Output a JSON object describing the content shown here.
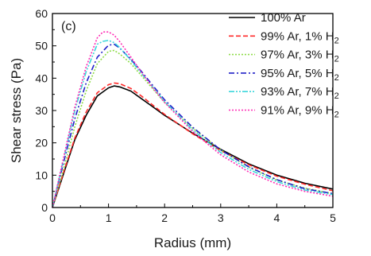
{
  "chart_data": {
    "type": "line",
    "panel_label": "(c)",
    "xlabel": "Radius (mm)",
    "ylabel": "Shear stress (Pa)",
    "xlim": [
      0,
      5
    ],
    "ylim": [
      0,
      60
    ],
    "xticks": [
      "0",
      "1",
      "2",
      "3",
      "4",
      "5"
    ],
    "yticks": [
      "0",
      "10",
      "20",
      "30",
      "40",
      "50",
      "60"
    ],
    "grid": false,
    "legend_position": "top-right",
    "series": [
      {
        "name": "100% Ar",
        "color": "#000000",
        "dash": "solid",
        "x": [
          0,
          0.2,
          0.4,
          0.6,
          0.8,
          1.0,
          1.1,
          1.2,
          1.4,
          1.6,
          1.8,
          2.0,
          2.5,
          3.0,
          3.5,
          4.0,
          4.5,
          5.0
        ],
        "y": [
          0,
          10.5,
          21,
          28.5,
          34.5,
          37,
          37.6,
          37.3,
          36,
          33.5,
          31,
          28.5,
          23,
          18,
          13.5,
          10,
          7.5,
          5.7
        ]
      },
      {
        "name": "99% Ar, 1% H",
        "sub": "2",
        "color": "#ff2a2a",
        "dash": "dash",
        "x": [
          0,
          0.2,
          0.4,
          0.6,
          0.8,
          1.0,
          1.1,
          1.2,
          1.4,
          1.6,
          1.8,
          2.0,
          2.5,
          3.0,
          3.5,
          4.0,
          4.5,
          5.0
        ],
        "y": [
          0,
          11,
          21.5,
          29.5,
          35.5,
          38,
          38.5,
          38.3,
          36.8,
          34.3,
          31.5,
          28.8,
          22.8,
          17.6,
          13.2,
          9.7,
          7.2,
          5.2
        ]
      },
      {
        "name": "97% Ar, 3% H",
        "sub": "2",
        "color": "#8fdc4a",
        "dash": "dot",
        "x": [
          0,
          0.2,
          0.4,
          0.6,
          0.8,
          1.0,
          1.1,
          1.2,
          1.4,
          1.6,
          1.8,
          2.0,
          2.5,
          3.0,
          3.5,
          4.0,
          4.5,
          5.0
        ],
        "y": [
          0,
          12,
          25,
          36,
          44.5,
          48.3,
          48.6,
          47.5,
          44.5,
          40.5,
          36.5,
          32.5,
          24.5,
          17.8,
          12.5,
          8.5,
          6,
          4.3
        ]
      },
      {
        "name": "95% Ar, 5% H",
        "sub": "2",
        "color": "#2020c8",
        "dash": "dashdot",
        "x": [
          0,
          0.2,
          0.4,
          0.6,
          0.8,
          1.0,
          1.1,
          1.2,
          1.4,
          1.6,
          1.8,
          2.0,
          2.5,
          3.0,
          3.5,
          4.0,
          4.5,
          5.0
        ],
        "y": [
          0,
          14,
          27.5,
          38.5,
          46.5,
          50.2,
          50.5,
          49.3,
          45.8,
          41.8,
          37.5,
          33.3,
          24.8,
          17.8,
          12.6,
          8.6,
          5.8,
          4.3
        ]
      },
      {
        "name": "93% Ar, 7% H",
        "sub": "2",
        "color": "#3cd6dc",
        "dash": "dashdotdot",
        "x": [
          0,
          0.2,
          0.4,
          0.6,
          0.8,
          0.9,
          1.0,
          1.1,
          1.2,
          1.4,
          1.6,
          1.8,
          2.0,
          2.5,
          3.0,
          3.5,
          4.0,
          4.5,
          5.0
        ],
        "y": [
          0,
          15,
          30,
          42,
          50.5,
          51.4,
          51.7,
          51,
          49.5,
          45.5,
          41.2,
          37,
          32.8,
          24,
          17,
          11.8,
          8,
          5.4,
          4
        ]
      },
      {
        "name": "91% Ar, 9% H",
        "sub": "2",
        "color": "#ff2ab4",
        "dash": "dot",
        "x": [
          0,
          0.2,
          0.4,
          0.6,
          0.8,
          0.9,
          1.0,
          1.1,
          1.2,
          1.4,
          1.6,
          1.8,
          2.0,
          2.5,
          3.0,
          3.5,
          4.0,
          4.5,
          5.0
        ],
        "y": [
          0,
          15.5,
          31,
          43.5,
          52.5,
          54.3,
          54.3,
          53.3,
          51.3,
          46.5,
          41.5,
          36.8,
          32.5,
          23.5,
          16.3,
          11,
          7.3,
          5,
          3.5
        ]
      }
    ]
  }
}
